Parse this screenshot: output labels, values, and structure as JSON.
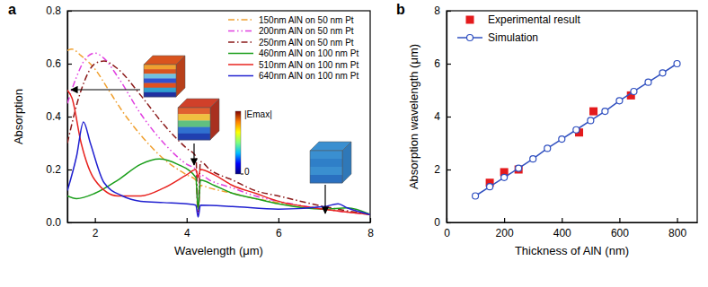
{
  "chart_data": [
    {
      "type": "line",
      "title": "a",
      "x_label": "Wavelength (μm)",
      "y_label": "Absorption",
      "xlim": [
        1.4,
        8
      ],
      "xticks": [
        2,
        4,
        6,
        8
      ],
      "ylim": [
        0,
        0.8
      ],
      "yticks": [
        {
          "value": 0,
          "label": "0.0"
        },
        {
          "value": 0.2,
          "label": "0.2"
        },
        {
          "value": 0.4,
          "label": "0.4"
        },
        {
          "value": 0.6,
          "label": "0.6"
        },
        {
          "value": 0.8,
          "label": "0.8"
        }
      ],
      "legend": "upper right",
      "colorbar": {
        "label": "|Emax|",
        "ticks": [
          0
        ]
      },
      "series": [
        {
          "name": "150nm AlN on 50 nm Pt",
          "color": "#f0a030",
          "line_style": "dash-dot",
          "x": [
            1.4,
            1.5,
            1.7,
            2.0,
            2.3,
            2.6,
            3.0,
            3.5,
            4.0,
            4.2,
            4.25,
            4.3,
            4.5,
            5.0,
            5.5,
            6.0,
            7.0,
            8.0
          ],
          "values": [
            0.65,
            0.655,
            0.63,
            0.58,
            0.5,
            0.42,
            0.33,
            0.24,
            0.18,
            0.16,
            0.03,
            0.14,
            0.13,
            0.11,
            0.09,
            0.075,
            0.05,
            0.03
          ]
        },
        {
          "name": "200nm AlN on 50 nm Pt",
          "color": "#e040e0",
          "line_style": "dash-dot-dot",
          "x": [
            1.4,
            1.6,
            1.8,
            2.0,
            2.2,
            2.5,
            3.0,
            3.5,
            4.0,
            4.2,
            4.25,
            4.3,
            4.5,
            5.0,
            5.5,
            6.0,
            7.0,
            8.0
          ],
          "values": [
            0.45,
            0.55,
            0.62,
            0.64,
            0.62,
            0.55,
            0.41,
            0.3,
            0.22,
            0.2,
            0.03,
            0.18,
            0.16,
            0.13,
            0.1,
            0.08,
            0.05,
            0.03
          ]
        },
        {
          "name": "250nm AlN on 50 nm Pt",
          "color": "#8b1a1a",
          "line_style": "dash-dot",
          "x": [
            1.4,
            1.7,
            2.0,
            2.2,
            2.5,
            3.0,
            3.5,
            4.0,
            4.2,
            4.25,
            4.3,
            4.5,
            5.0,
            5.5,
            6.0,
            7.0,
            8.0
          ],
          "values": [
            0.3,
            0.5,
            0.6,
            0.61,
            0.58,
            0.48,
            0.37,
            0.28,
            0.25,
            0.04,
            0.23,
            0.2,
            0.16,
            0.12,
            0.1,
            0.06,
            0.03
          ]
        },
        {
          "name": "460nm AlN on 100 nm Pt",
          "color": "#1a9e1a",
          "line_style": "solid",
          "x": [
            1.4,
            1.6,
            2.0,
            2.5,
            3.0,
            3.4,
            3.8,
            4.2,
            4.25,
            4.3,
            4.6,
            5.0,
            5.5,
            6.0,
            7.0,
            7.5,
            8.0
          ],
          "values": [
            0.1,
            0.09,
            0.11,
            0.16,
            0.22,
            0.24,
            0.22,
            0.17,
            0.05,
            0.16,
            0.14,
            0.11,
            0.09,
            0.07,
            0.05,
            0.055,
            0.03
          ]
        },
        {
          "name": "510nm AlN on 100 nm Pt",
          "color": "#e8231f",
          "line_style": "solid",
          "x": [
            1.4,
            1.5,
            1.7,
            2.0,
            2.5,
            3.0,
            3.5,
            4.0,
            4.2,
            4.25,
            4.3,
            4.6,
            5.0,
            5.5,
            6.0,
            7.0,
            8.0
          ],
          "values": [
            0.5,
            0.47,
            0.3,
            0.16,
            0.1,
            0.1,
            0.13,
            0.18,
            0.2,
            0.17,
            0.2,
            0.18,
            0.14,
            0.11,
            0.08,
            0.05,
            0.03
          ]
        },
        {
          "name": "640nm AlN on 100 nm Pt",
          "color": "#2020d0",
          "line_style": "solid",
          "x": [
            1.4,
            1.6,
            1.75,
            1.9,
            2.2,
            2.6,
            3.0,
            3.5,
            4.0,
            4.2,
            4.25,
            4.3,
            5.0,
            6.0,
            7.0,
            7.3,
            7.5,
            8.0
          ],
          "values": [
            0.12,
            0.25,
            0.38,
            0.3,
            0.15,
            0.1,
            0.08,
            0.075,
            0.07,
            0.065,
            0.02,
            0.065,
            0.06,
            0.05,
            0.06,
            0.07,
            0.055,
            0.03
          ]
        }
      ]
    },
    {
      "type": "scatter",
      "title": "b",
      "x_label": "Thickness of AlN (nm)",
      "y_label": "Absorption wavelength (μm)",
      "xlim": [
        0,
        870
      ],
      "xticks": [
        0,
        200,
        400,
        600,
        800
      ],
      "ylim": [
        0,
        8
      ],
      "yticks": [
        0,
        2,
        4,
        6,
        8
      ],
      "legend": "upper left",
      "series": [
        {
          "name": "Experimental result",
          "type": "scatter",
          "color": "#e41a1c",
          "marker": "square",
          "x": [
            150,
            200,
            250,
            460,
            510,
            640
          ],
          "values": [
            1.5,
            1.9,
            2.0,
            3.4,
            4.2,
            4.8
          ]
        },
        {
          "name": "Simulation",
          "type": "line",
          "color": "#3050c0",
          "marker": "circle-open",
          "line_style": "solid",
          "x": [
            100,
            150,
            200,
            250,
            300,
            350,
            400,
            450,
            500,
            550,
            600,
            650,
            700,
            750,
            800
          ],
          "values": [
            1.0,
            1.35,
            1.7,
            2.05,
            2.4,
            2.8,
            3.15,
            3.5,
            3.85,
            4.2,
            4.6,
            4.95,
            5.3,
            5.65,
            6.0
          ]
        }
      ]
    }
  ]
}
